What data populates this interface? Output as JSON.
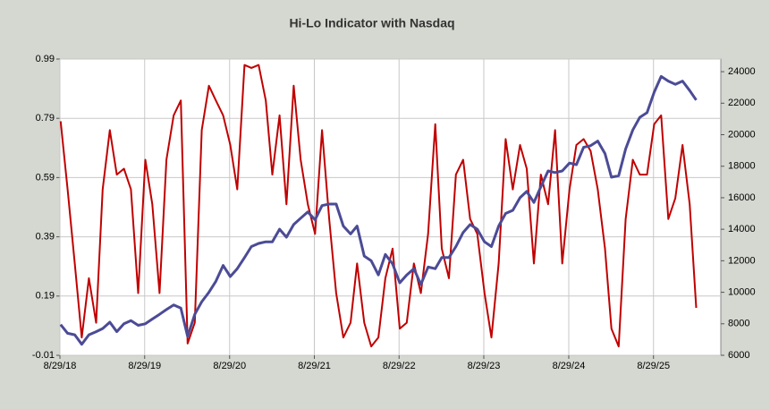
{
  "chart_data": {
    "type": "line",
    "title": "Hi-Lo Indicator with Nasdaq",
    "x": [
      "2018-09-01",
      "2018-10-01",
      "2018-11-01",
      "2018-12-01",
      "2019-01-01",
      "2019-02-01",
      "2019-03-01",
      "2019-04-01",
      "2019-05-01",
      "2019-06-01",
      "2019-07-01",
      "2019-08-01",
      "2019-09-01",
      "2019-10-01",
      "2019-11-01",
      "2019-12-01",
      "2020-01-01",
      "2020-02-01",
      "2020-03-01",
      "2020-04-01",
      "2020-05-01",
      "2020-06-01",
      "2020-07-01",
      "2020-08-01",
      "2020-09-01",
      "2020-10-01",
      "2020-11-01",
      "2020-12-01",
      "2021-01-01",
      "2021-02-01",
      "2021-03-01",
      "2021-04-01",
      "2021-05-01",
      "2021-06-01",
      "2021-07-01",
      "2021-08-01",
      "2021-09-01",
      "2021-10-01",
      "2021-11-01",
      "2021-12-01",
      "2022-01-01",
      "2022-02-01",
      "2022-03-01",
      "2022-04-01",
      "2022-05-01",
      "2022-06-01",
      "2022-07-01",
      "2022-08-01",
      "2022-09-01",
      "2022-10-01",
      "2022-11-01",
      "2022-12-01",
      "2023-01-01",
      "2023-02-01",
      "2023-03-01",
      "2023-04-01",
      "2023-05-01",
      "2023-06-01",
      "2023-07-01",
      "2023-08-01",
      "2023-09-01",
      "2023-10-01",
      "2023-11-01",
      "2023-12-01",
      "2024-01-01",
      "2024-02-01",
      "2024-03-01",
      "2024-04-01",
      "2024-05-01",
      "2024-06-01",
      "2024-07-01",
      "2024-08-01",
      "2024-09-01",
      "2024-10-01",
      "2024-11-01",
      "2024-12-01",
      "2025-01-01",
      "2025-02-01",
      "2025-03-01",
      "2025-04-01",
      "2025-05-01",
      "2025-06-01",
      "2025-07-01",
      "2025-08-01",
      "2025-09-01",
      "2025-10-01",
      "2025-11-01",
      "2025-12-01",
      "2026-01-01",
      "2026-02-01",
      "2026-03-01"
    ],
    "series": [
      {
        "color": "#c00000",
        "values": [
          0.78,
          0.55,
          0.3,
          0.05,
          0.25,
          0.1,
          0.55,
          0.75,
          0.6,
          0.62,
          0.55,
          0.2,
          0.65,
          0.5,
          0.2,
          0.65,
          0.8,
          0.85,
          0.03,
          0.1,
          0.75,
          0.9,
          0.85,
          0.8,
          0.7,
          0.55,
          0.97,
          0.96,
          0.97,
          0.85,
          0.6,
          0.8,
          0.5,
          0.9,
          0.65,
          0.5,
          0.4,
          0.75,
          0.45,
          0.2,
          0.05,
          0.1,
          0.3,
          0.1,
          0.02,
          0.05,
          0.25,
          0.35,
          0.08,
          0.1,
          0.3,
          0.2,
          0.4,
          0.77,
          0.35,
          0.25,
          0.6,
          0.65,
          0.45,
          0.4,
          0.2,
          0.05,
          0.3,
          0.72,
          0.55,
          0.7,
          0.62,
          0.3,
          0.6,
          0.5,
          0.75,
          0.3,
          0.55,
          0.7,
          0.72,
          0.68,
          0.55,
          0.35,
          0.08,
          0.02,
          0.45,
          0.65,
          0.6,
          0.6,
          0.77,
          0.8,
          0.45,
          0.52,
          0.7,
          0.5,
          0.15
        ]
      },
      {
        "color": "#4b4b96",
        "axis": "y2",
        "values": [
          7950,
          7400,
          7300,
          6700,
          7300,
          7500,
          7700,
          8100,
          7500,
          8000,
          8200,
          7900,
          8000,
          8300,
          8600,
          8900,
          9200,
          9000,
          7200,
          8600,
          9400,
          10000,
          10700,
          11700,
          11000,
          11500,
          12200,
          12900,
          13100,
          13200,
          13200,
          14000,
          13500,
          14300,
          14700,
          15100,
          14600,
          15500,
          15600,
          15600,
          14200,
          13700,
          14200,
          12300,
          12000,
          11100,
          12400,
          11800,
          10600,
          11100,
          11500,
          10500,
          11600,
          11500,
          12200,
          12200,
          12900,
          13800,
          14300,
          14000,
          13200,
          12900,
          14200,
          15000,
          15200,
          16000,
          16400,
          15700,
          16700,
          17700,
          17600,
          17700,
          18200,
          18100,
          19200,
          19300,
          19600,
          18800,
          17300,
          17400,
          19100,
          20300,
          21100,
          21400,
          22700,
          23700,
          23400,
          23200,
          23400,
          22800,
          22200
        ]
      }
    ],
    "xlim": [
      "2018-08-29",
      "2026-06-15"
    ],
    "xticks": [
      {
        "value": "2018-08-29",
        "label": "8/29/18"
      },
      {
        "value": "2019-08-29",
        "label": "8/29/19"
      },
      {
        "value": "2020-08-29",
        "label": "8/29/20"
      },
      {
        "value": "2021-08-29",
        "label": "8/29/21"
      },
      {
        "value": "2022-08-29",
        "label": "8/29/22"
      },
      {
        "value": "2023-08-29",
        "label": "8/29/23"
      },
      {
        "value": "2024-08-29",
        "label": "8/29/24"
      },
      {
        "value": "2025-08-29",
        "label": "8/29/25"
      }
    ],
    "ylim": [
      -0.01,
      0.99
    ],
    "yticks": [
      -0.01,
      0.19,
      0.39,
      0.59,
      0.79,
      0.99
    ],
    "y2lim": [
      6000,
      24800
    ],
    "y2ticks": [
      6000,
      8000,
      10000,
      12000,
      14000,
      16000,
      18000,
      20000,
      22000,
      24000
    ],
    "grid": true
  }
}
